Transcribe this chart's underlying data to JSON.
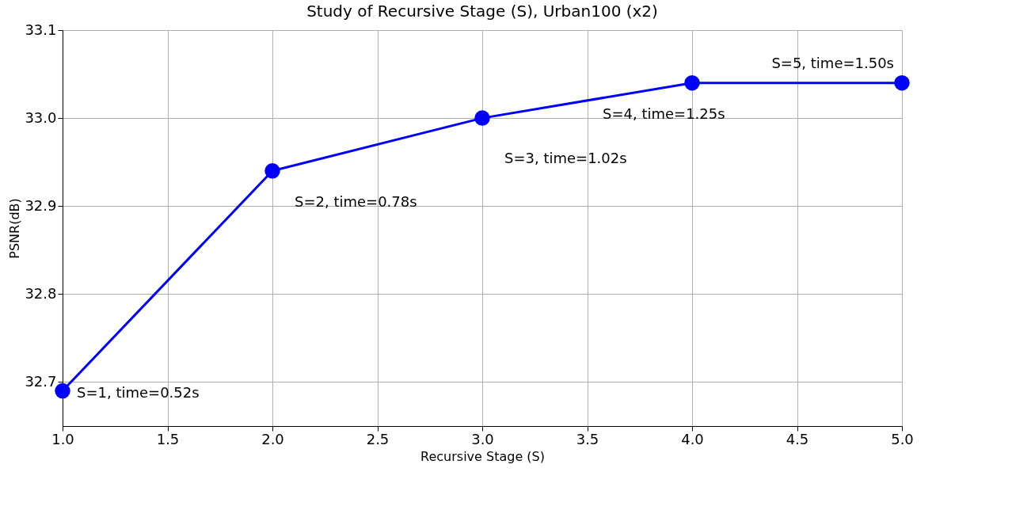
{
  "chart_data": {
    "type": "line",
    "title": "Study of Recursive Stage (S), Urban100 (x2)",
    "xlabel": "Recursive Stage (S)",
    "ylabel": "PSNR(dB)",
    "x": [
      1,
      2,
      3,
      4,
      5
    ],
    "series": [
      {
        "color": "#0000ff",
        "values": [
          32.69,
          32.94,
          33.0,
          33.04,
          33.04
        ]
      }
    ],
    "xlim": [
      1.0,
      5.0
    ],
    "xticks": [
      {
        "value": 1,
        "label": "1.0"
      },
      1.5,
      {
        "value": 2,
        "label": "2.0"
      },
      2.5,
      {
        "value": 3,
        "label": "3.0"
      },
      3.5,
      {
        "value": 4,
        "label": "4.0"
      },
      4.5,
      {
        "value": 5,
        "label": "5.0"
      }
    ],
    "ylim": [
      32.65,
      33.1
    ],
    "yticks": [
      32.7,
      32.8,
      32.9,
      {
        "value": 33.0,
        "label": "33.0"
      },
      33.1
    ],
    "annotations": [
      {
        "text": "S=1, time=0.52s",
        "x": 1,
        "y": 32.69
      },
      {
        "text": "S=2, time=0.78s",
        "x": 2,
        "y": 32.94
      },
      {
        "text": "S=3, time=1.02s",
        "x": 3,
        "y": 33.0
      },
      {
        "text": "S=4, time=1.25s",
        "x": 4,
        "y": 33.04
      },
      {
        "text": "S=5, time=1.50s",
        "x": 5,
        "y": 33.04
      }
    ],
    "grid": true,
    "marker": "circle",
    "line_style": "solid"
  }
}
